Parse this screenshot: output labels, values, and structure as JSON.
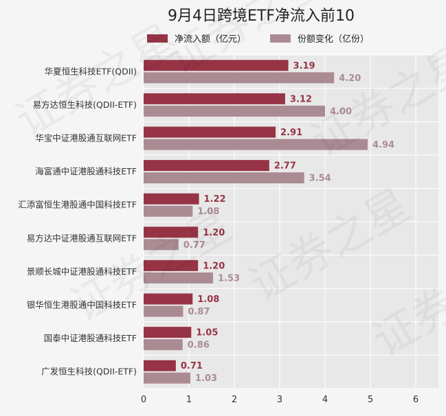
{
  "chart_data": {
    "type": "bar",
    "orientation": "horizontal",
    "title": "9月4日跨境ETF净流入前10",
    "categories": [
      "华夏恒生科技ETF(QDII)",
      "易方达恒生科技(QDII-ETF)",
      "华宝中证港股通互联网ETF",
      "海富通中证港股通科技ETF",
      "汇添富恒生港股通中国科技ETF",
      "易方达中证港股通互联网ETF",
      "景顺长城中证港股通科技ETF",
      "银华恒生港股通中国科技ETF",
      "国泰中证港股通科技ETF",
      "广发恒生科技(QDII-ETF)"
    ],
    "series": [
      {
        "name": "净流入额（亿元）",
        "color": "#963446",
        "values": [
          3.19,
          3.12,
          2.91,
          2.77,
          1.22,
          1.2,
          1.2,
          1.08,
          1.05,
          0.71
        ],
        "labels": [
          "3.19",
          "3.12",
          "2.91",
          "2.77",
          "1.22",
          "1.20",
          "1.20",
          "1.08",
          "1.05",
          "0.71"
        ]
      },
      {
        "name": "份额变化（亿份）",
        "color": "#ab8b93",
        "values": [
          4.2,
          4.0,
          4.94,
          3.54,
          1.08,
          0.77,
          1.53,
          0.87,
          0.86,
          1.03
        ],
        "labels": [
          "4.20",
          "4.00",
          "4.94",
          "3.54",
          "1.08",
          "0.77",
          "1.53",
          "0.87",
          "0.86",
          "1.03"
        ]
      }
    ],
    "xlim": [
      0,
      6.5
    ],
    "xticks": [
      0,
      1,
      2,
      3,
      4,
      5,
      6
    ],
    "xtick_labels": [
      "0",
      "1",
      "2",
      "3",
      "4",
      "5",
      "6"
    ],
    "xlabel": "",
    "ylabel": "",
    "grid": true,
    "legend_position": "top",
    "plot_background": "#e8e8e8",
    "watermark_text": "证券之星"
  }
}
